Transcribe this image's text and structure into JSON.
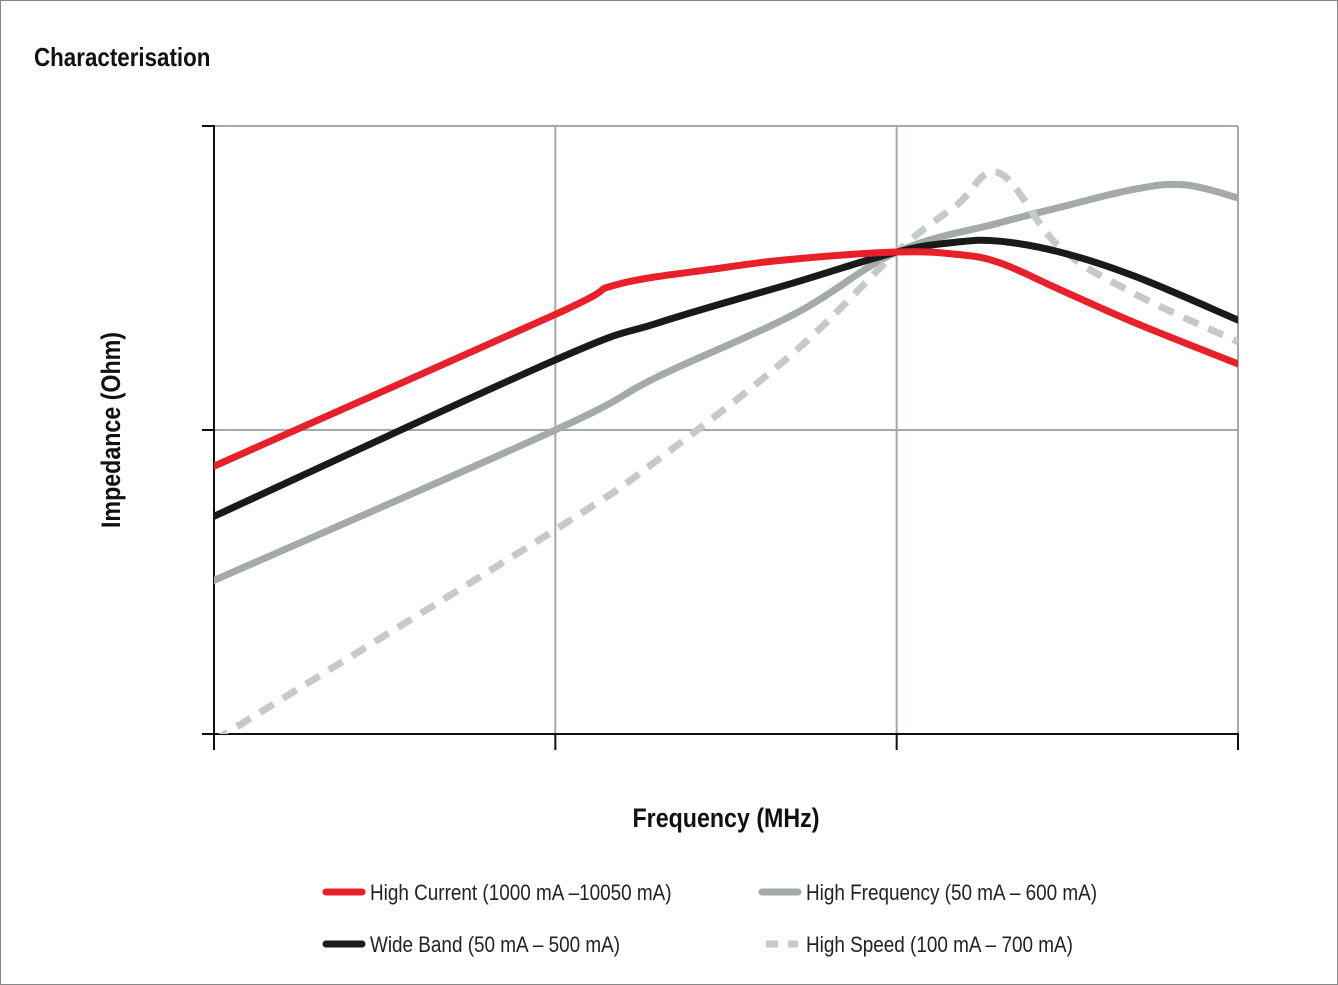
{
  "chart_data": {
    "type": "line",
    "title": "Characterisation",
    "xlabel": "Frequency (MHz)",
    "ylabel": "Impedance (Ohm)",
    "x_scale": "log",
    "y_scale": "log",
    "xlim": [
      1,
      1000
    ],
    "ylim": [
      1,
      100
    ],
    "grid": true,
    "legend_position": "bottom",
    "series": [
      {
        "name": "High Current (1000 mA –10050 mA)",
        "color": "#e8202a",
        "style": "solid",
        "points": [
          [
            1,
            7.6
          ],
          [
            10,
            24
          ],
          [
            15,
            30
          ],
          [
            30,
            34
          ],
          [
            50,
            36.5
          ],
          [
            100,
            38.5
          ],
          [
            150,
            37.8
          ],
          [
            200,
            35.5
          ],
          [
            300,
            29
          ],
          [
            500,
            22.5
          ],
          [
            1000,
            16.5
          ]
        ]
      },
      {
        "name": "High Frequency (50 mA – 600 mA)",
        "color": "#a3aaa8",
        "style": "solid",
        "points": [
          [
            1,
            3.2
          ],
          [
            10,
            10
          ],
          [
            20,
            15
          ],
          [
            50,
            24
          ],
          [
            100,
            38.5
          ],
          [
            200,
            48
          ],
          [
            300,
            54
          ],
          [
            500,
            62
          ],
          [
            700,
            64
          ],
          [
            1000,
            58
          ]
        ]
      },
      {
        "name": "Wide Band (50 mA – 500 mA)",
        "color": "#1a1a1a",
        "style": "solid",
        "points": [
          [
            1,
            5.2
          ],
          [
            10,
            17
          ],
          [
            20,
            22.5
          ],
          [
            50,
            30.5
          ],
          [
            100,
            38.5
          ],
          [
            150,
            41.5
          ],
          [
            200,
            41.8
          ],
          [
            300,
            38.5
          ],
          [
            500,
            32
          ],
          [
            1000,
            23
          ]
        ]
      },
      {
        "name": "High Speed (100 mA – 700 mA)",
        "color": "#c5c9c8",
        "style": "dashed",
        "points": [
          [
            1,
            0.95
          ],
          [
            10,
            4.7
          ],
          [
            20,
            8
          ],
          [
            50,
            18
          ],
          [
            100,
            38.5
          ],
          [
            150,
            55
          ],
          [
            200,
            70
          ],
          [
            300,
            40
          ],
          [
            500,
            28
          ],
          [
            1000,
            19.5
          ]
        ]
      }
    ]
  }
}
